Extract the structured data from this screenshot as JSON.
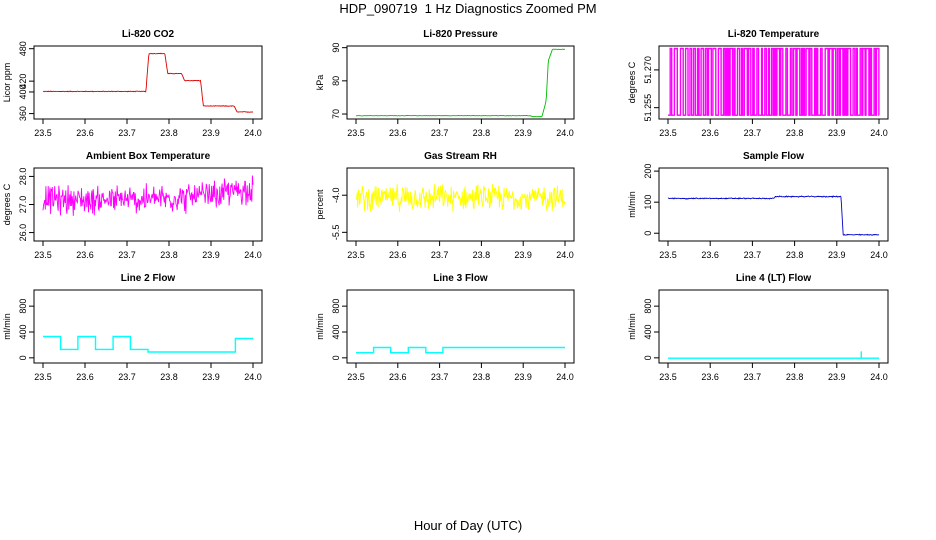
{
  "title": "HDP_090719  1 Hz Diagnostics Zoomed PM",
  "xlabel": "Hour of Day (UTC)",
  "chart_data": [
    {
      "type": "line",
      "title": "Li-820 CO2",
      "xlabel": "",
      "ylabel": "Licor ppm",
      "color": "#dd0000",
      "xlim": [
        23.5,
        24.0
      ],
      "ylim": [
        350,
        485
      ],
      "xticks": [
        "23.5",
        "23.6",
        "23.7",
        "23.8",
        "23.9",
        "24.0"
      ],
      "yticks": [
        "360",
        "400",
        "420",
        "480"
      ],
      "ytick_values": [
        360,
        400,
        420,
        480
      ],
      "noise": 0.6,
      "series": [
        {
          "x": [
            23.5,
            23.745,
            23.752,
            23.79,
            23.797,
            23.83,
            23.837,
            23.875,
            23.882,
            23.955,
            23.962,
            24.0
          ],
          "y": [
            401,
            401,
            471,
            471,
            434,
            434,
            421,
            421,
            374,
            374,
            363,
            363
          ]
        }
      ]
    },
    {
      "type": "line",
      "title": "Li-820 Pressure",
      "xlabel": "",
      "ylabel": "kPa",
      "color": "#00bb00",
      "xlim": [
        23.5,
        24.0
      ],
      "ylim": [
        68.5,
        90.5
      ],
      "xticks": [
        "23.5",
        "23.6",
        "23.7",
        "23.8",
        "23.9",
        "24.0"
      ],
      "yticks": [
        "70",
        "80",
        "90"
      ],
      "ytick_values": [
        70,
        80,
        90
      ],
      "noise": 0.05,
      "series": [
        {
          "x": [
            23.5,
            23.915,
            23.925,
            23.945,
            23.955,
            23.96,
            23.97,
            24.0
          ],
          "y": [
            69.5,
            69.5,
            69.2,
            69.2,
            74,
            86,
            89.5,
            89.5
          ]
        }
      ]
    },
    {
      "type": "line",
      "title": "Li-820 Temperature",
      "xlabel": "",
      "ylabel": "degrees C",
      "color": "#ff00ff",
      "xlim": [
        23.5,
        24.0
      ],
      "ylim": [
        51.2505,
        51.2795
      ],
      "xticks": [
        "23.5",
        "23.6",
        "23.7",
        "23.8",
        "23.9",
        "24.0"
      ],
      "yticks": [
        "51.255",
        "51.270"
      ],
      "ytick_values": [
        51.255,
        51.27
      ],
      "digital": true,
      "levels": [
        51.252,
        51.2785
      ],
      "series": [
        {
          "x": [
            23.5,
            24.0
          ],
          "y": [
            51.252,
            51.2785
          ]
        }
      ]
    },
    {
      "type": "line",
      "title": "Ambient Box Temperature",
      "xlabel": "",
      "ylabel": "degrees C",
      "color": "#ff00ff",
      "xlim": [
        23.5,
        24.0
      ],
      "ylim": [
        25.7,
        28.3
      ],
      "xticks": [
        "23.5",
        "23.6",
        "23.7",
        "23.8",
        "23.9",
        "24.0"
      ],
      "yticks": [
        "26.0",
        "27.0",
        "28.0"
      ],
      "ytick_values": [
        26.0,
        27.0,
        28.0
      ],
      "noise": 0.45,
      "series": [
        {
          "x": [
            23.5,
            23.7,
            23.9,
            24.0
          ],
          "y": [
            27.2,
            27.15,
            27.3,
            27.6
          ]
        }
      ]
    },
    {
      "type": "line",
      "title": "Gas Stream RH",
      "xlabel": "",
      "ylabel": "percent",
      "color": "#ffff00",
      "xlim": [
        23.5,
        24.0
      ],
      "ylim": [
        -5.85,
        -2.9
      ],
      "xticks": [
        "23.5",
        "23.6",
        "23.7",
        "23.8",
        "23.9",
        "24.0"
      ],
      "yticks": [
        "-5.5",
        "-4.0"
      ],
      "ytick_values": [
        -5.5,
        -4.0
      ],
      "noise": 0.45,
      "series": [
        {
          "x": [
            23.5,
            24.0
          ],
          "y": [
            -4.1,
            -4.1
          ]
        }
      ]
    },
    {
      "type": "line",
      "title": "Sample Flow",
      "xlabel": "",
      "ylabel": "ml/min",
      "color": "#0000cc",
      "xlim": [
        23.5,
        24.0
      ],
      "ylim": [
        -25,
        210
      ],
      "xticks": [
        "23.5",
        "23.6",
        "23.7",
        "23.8",
        "23.9",
        "24.0"
      ],
      "yticks": [
        "0",
        "100",
        "200"
      ],
      "ytick_values": [
        0,
        100,
        200
      ],
      "noise": 1.5,
      "series": [
        {
          "x": [
            23.5,
            23.75,
            23.755,
            23.91,
            23.915,
            24.0
          ],
          "y": [
            112,
            112,
            118,
            118,
            -5,
            -5
          ]
        }
      ]
    },
    {
      "type": "line",
      "title": "Line 2 Flow",
      "xlabel": "",
      "ylabel": "ml/min",
      "color": "#00ffff",
      "xlim": [
        23.5,
        24.0
      ],
      "ylim": [
        -80,
        1050
      ],
      "xticks": [
        "23.5",
        "23.6",
        "23.7",
        "23.8",
        "23.9",
        "24.0"
      ],
      "yticks": [
        "0",
        "400",
        "800"
      ],
      "ytick_values": [
        0,
        400,
        800
      ],
      "step": true,
      "series": [
        {
          "x": [
            23.5,
            23.542,
            23.583,
            23.625,
            23.667,
            23.708,
            23.75,
            23.958,
            24.0
          ],
          "y": [
            330,
            130,
            330,
            130,
            330,
            130,
            90,
            300,
            300
          ]
        }
      ]
    },
    {
      "type": "line",
      "title": "Line 3 Flow",
      "xlabel": "",
      "ylabel": "ml/min",
      "color": "#00ffff",
      "xlim": [
        23.5,
        24.0
      ],
      "ylim": [
        -80,
        1050
      ],
      "xticks": [
        "23.5",
        "23.6",
        "23.7",
        "23.8",
        "23.9",
        "24.0"
      ],
      "yticks": [
        "0",
        "400",
        "800"
      ],
      "ytick_values": [
        0,
        400,
        800
      ],
      "step": true,
      "series": [
        {
          "x": [
            23.5,
            23.542,
            23.583,
            23.625,
            23.667,
            23.708,
            24.0
          ],
          "y": [
            80,
            160,
            80,
            160,
            80,
            160,
            160
          ]
        }
      ]
    },
    {
      "type": "line",
      "title": "Line 4 (LT) Flow",
      "xlabel": "",
      "ylabel": "ml/min",
      "color": "#00ffff",
      "xlim": [
        23.5,
        24.0
      ],
      "ylim": [
        -80,
        1050
      ],
      "xticks": [
        "23.5",
        "23.6",
        "23.7",
        "23.8",
        "23.9",
        "24.0"
      ],
      "yticks": [
        "0",
        "400",
        "800"
      ],
      "ytick_values": [
        0,
        400,
        800
      ],
      "spike": {
        "x": 23.958,
        "y": 100
      },
      "series": [
        {
          "x": [
            23.5,
            24.0
          ],
          "y": [
            -5,
            -5
          ]
        }
      ]
    }
  ]
}
